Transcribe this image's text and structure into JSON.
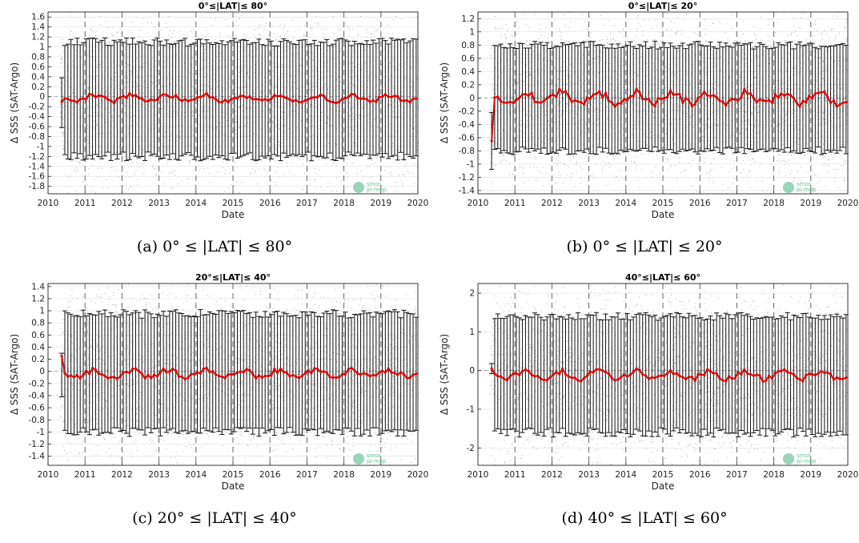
{
  "chart_data": [
    {
      "type": "scatter",
      "title": "0°≤|LAT|≤ 80°",
      "caption": "(a) 0° ≤ |LAT| ≤ 80°",
      "xlabel": "Date",
      "ylabel": "Δ SSS (SAT-Argo)",
      "xlim": [
        2010,
        2020
      ],
      "ylim": [
        -1.95,
        1.7
      ],
      "xticks": [
        "2010",
        "2011",
        "2012",
        "2013",
        "2014",
        "2015",
        "2016",
        "2017",
        "2018",
        "2019",
        "2020"
      ],
      "yticks": [
        "1.6",
        "1.4",
        "1.2",
        "1",
        "0.8",
        "0.6",
        "0.4",
        "0.2",
        "0",
        "-0.2",
        "-0.4",
        "-0.6",
        "-0.8",
        "-1",
        "-1.2",
        "-1.4",
        "-1.6",
        "-1.8"
      ],
      "ytick_values": [
        1.6,
        1.4,
        1.2,
        1,
        0.8,
        0.6,
        0.4,
        0.2,
        0,
        -0.2,
        -0.4,
        -0.6,
        -0.8,
        -1,
        -1.2,
        -1.4,
        -1.6,
        -1.8
      ],
      "series": [
        {
          "kind": "mean",
          "color": "#e00000",
          "start": 2010.37,
          "end": 2019.96,
          "base": -0.03,
          "amp": 0.06,
          "first": -0.1
        },
        {
          "kind": "std_errorbar",
          "upper_typical": 1.1,
          "lower_typical": -1.2,
          "first_upper": 0.38,
          "first_lower": -0.62
        }
      ],
      "grid": true,
      "watermark": "smos pi-mep"
    },
    {
      "type": "scatter",
      "title": "0°≤|LAT|≤ 20°",
      "caption": "(b) 0° ≤ |LAT| ≤ 20°",
      "xlabel": "Date",
      "ylabel": "Δ SSS (SAT-Argo)",
      "xlim": [
        2010,
        2020
      ],
      "ylim": [
        -1.45,
        1.3
      ],
      "xticks": [
        "2010",
        "2011",
        "2012",
        "2013",
        "2014",
        "2015",
        "2016",
        "2017",
        "2018",
        "2019",
        "2020"
      ],
      "yticks": [
        "1.2",
        "1",
        "0.8",
        "0.6",
        "0.4",
        "0.2",
        "0",
        "-0.2",
        "-0.4",
        "-0.6",
        "-0.8",
        "-1",
        "-1.2",
        "-1.4"
      ],
      "ytick_values": [
        1.2,
        1,
        0.8,
        0.6,
        0.4,
        0.2,
        0,
        -0.2,
        -0.4,
        -0.6,
        -0.8,
        -1,
        -1.2,
        -1.4
      ],
      "series": [
        {
          "kind": "mean",
          "color": "#e00000",
          "start": 2010.37,
          "end": 2019.96,
          "base": 0.0,
          "amp": 0.08,
          "first": -0.65
        },
        {
          "kind": "std_errorbar",
          "upper_typical": 0.8,
          "lower_typical": -0.8,
          "first_upper": -0.22,
          "first_lower": -1.08
        }
      ],
      "grid": true,
      "watermark": "smos pi-mep"
    },
    {
      "type": "scatter",
      "title": "20°≤|LAT|≤ 40°",
      "caption": "(c) 20° ≤ |LAT| ≤ 40°",
      "xlabel": "Date",
      "ylabel": "Δ SSS (SAT-Argo)",
      "xlim": [
        2010,
        2020
      ],
      "ylim": [
        -1.55,
        1.45
      ],
      "xticks": [
        "2010",
        "2011",
        "2012",
        "2013",
        "2014",
        "2015",
        "2016",
        "2017",
        "2018",
        "2019",
        "2020"
      ],
      "yticks": [
        "1.4",
        "1.2",
        "1",
        "0.8",
        "0.6",
        "0.4",
        "0.2",
        "0",
        "-0.2",
        "-0.4",
        "-0.6",
        "-0.8",
        "-1",
        "-1.2",
        "-1.4"
      ],
      "ytick_values": [
        1.4,
        1.2,
        1,
        0.8,
        0.6,
        0.4,
        0.2,
        0,
        -0.2,
        -0.4,
        -0.6,
        -0.8,
        -1,
        -1.2,
        -1.4
      ],
      "series": [
        {
          "kind": "mean",
          "color": "#e00000",
          "start": 2010.37,
          "end": 2019.96,
          "base": -0.04,
          "amp": 0.06,
          "first": 0.25
        },
        {
          "kind": "std_errorbar",
          "upper_typical": 0.95,
          "lower_typical": -1.0,
          "first_upper": 0.3,
          "first_lower": -0.42
        }
      ],
      "grid": true,
      "watermark": "smos pi-mep"
    },
    {
      "type": "scatter",
      "title": "40°≤|LAT|≤ 60°",
      "caption": "(d) 40° ≤ |LAT| ≤ 60°",
      "xlabel": "Date",
      "ylabel": "Δ SSS (SAT-Argo)",
      "xlim": [
        2010,
        2020
      ],
      "ylim": [
        -2.45,
        2.25
      ],
      "xticks": [
        "2010",
        "2011",
        "2012",
        "2013",
        "2014",
        "2015",
        "2016",
        "2017",
        "2018",
        "2019",
        "2020"
      ],
      "yticks": [
        "2",
        "1",
        "0",
        "-1",
        "-2"
      ],
      "ytick_values": [
        2,
        1,
        0,
        -1,
        -2
      ],
      "series": [
        {
          "kind": "mean",
          "color": "#e00000",
          "start": 2010.37,
          "end": 2019.96,
          "base": -0.12,
          "amp": 0.1,
          "first": 0.05
        },
        {
          "kind": "std_errorbar",
          "upper_typical": 1.4,
          "lower_typical": -1.6,
          "first_upper": 0.18,
          "first_lower": -0.08
        }
      ],
      "grid": true,
      "watermark": "smos pi-mep"
    }
  ]
}
